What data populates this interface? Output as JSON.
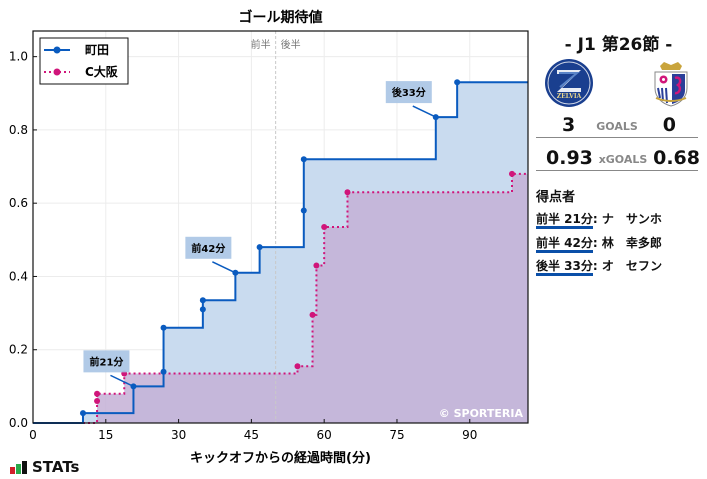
{
  "chart_data": {
    "type": "line",
    "subtype": "step",
    "title": "ゴール期待値",
    "xlabel": "キックオフからの経過時間(分)",
    "ylabel": "",
    "xlim": [
      0,
      102
    ],
    "ylim": [
      0,
      1.07
    ],
    "xticks": [
      0,
      15,
      30,
      45,
      60,
      75,
      90
    ],
    "yticks": [
      0.0,
      0.2,
      0.4,
      0.6,
      0.8,
      1.0
    ],
    "ytick_labels": [
      "0.0",
      "0.2",
      "0.4",
      "0.6",
      "0.8",
      "1.0"
    ],
    "grid": true,
    "legend_position": "upper left",
    "half_divider": {
      "x": 50,
      "left_label": "前半",
      "right_label": "後半"
    },
    "series": [
      {
        "name": "町田",
        "color": "#0a5bbf",
        "fill": "#c9dbef",
        "style": "solid",
        "x": [
          0,
          10.3,
          20.7,
          26.9,
          26.9,
          35.0,
          35.0,
          41.7,
          46.7,
          55.8,
          55.8,
          83.0,
          87.4,
          102
        ],
        "y": [
          0,
          0.027,
          0.1,
          0.14,
          0.26,
          0.31,
          0.335,
          0.41,
          0.48,
          0.58,
          0.72,
          0.835,
          0.93,
          0.93
        ]
      },
      {
        "name": "C大阪",
        "color": "#d0157a",
        "fill": "#c4b0d6",
        "style": "dotted",
        "x": [
          0,
          13.2,
          13.2,
          18.8,
          54.5,
          57.6,
          58.4,
          60.0,
          64.8,
          98.7,
          102
        ],
        "y": [
          0,
          0.06,
          0.08,
          0.135,
          0.155,
          0.295,
          0.43,
          0.535,
          0.63,
          0.68,
          0.68
        ]
      }
    ],
    "annotations": [
      {
        "text": "前21分",
        "x": 20.7,
        "y": 0.1
      },
      {
        "text": "前42分",
        "x": 41.7,
        "y": 0.41
      },
      {
        "text": "後33分",
        "x": 83.0,
        "y": 0.835
      }
    ],
    "watermark": "© SPORTERIA"
  },
  "match": {
    "title": "-  J1 第26節  -",
    "home_team": "町田",
    "away_team": "C大阪",
    "home_logo_text": "ZELVIA",
    "goals": {
      "home": "3",
      "label": "GOALS",
      "away": "0"
    },
    "xgoals": {
      "home": "0.93",
      "label": "xGOALS",
      "away": "0.68"
    }
  },
  "scorers": {
    "title": "得点者",
    "items": [
      {
        "time": "前半 21分",
        "name": ": ナ　サンホ"
      },
      {
        "time": "前半 42分",
        "name": ": 林　幸多郎"
      },
      {
        "time": "後半 33分",
        "name": ": オ　セフン"
      }
    ]
  },
  "brand": {
    "label": "STATs"
  }
}
